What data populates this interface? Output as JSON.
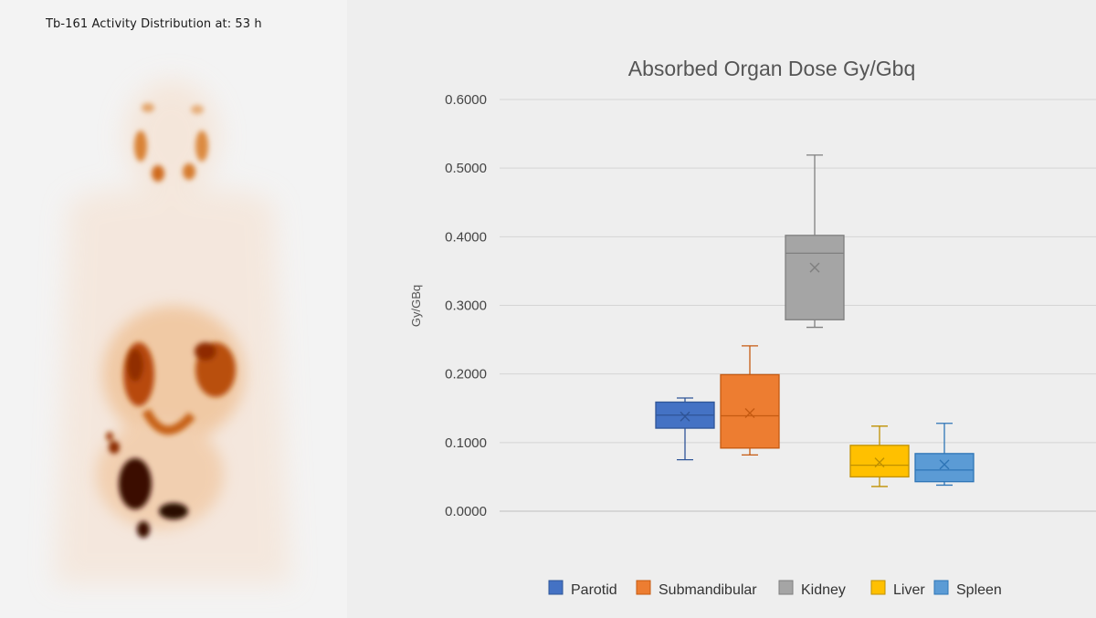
{
  "left_panel": {
    "title": "Tb-161 Activity Distribution at: 53 h"
  },
  "chart_data": {
    "type": "box",
    "title": "Absorbed Organ Dose Gy/Gbq",
    "xlabel": "",
    "ylabel": "Gy/GBq",
    "ylim": [
      0,
      0.6
    ],
    "yticks": [
      0,
      0.1,
      0.2,
      0.3,
      0.4,
      0.5,
      0.6
    ],
    "ytick_labels": [
      "0.0000",
      "0.1000",
      "0.2000",
      "0.3000",
      "0.4000",
      "0.5000",
      "0.6000"
    ],
    "grid": true,
    "legend_position": "bottom",
    "series": [
      {
        "name": "Parotid",
        "color": "#4472C4",
        "stroke": "#2F5597",
        "min": 0.075,
        "q1": 0.121,
        "median": 0.14,
        "q3": 0.159,
        "max": 0.165,
        "mean": 0.138
      },
      {
        "name": "Submandibular",
        "color": "#ED7D31",
        "stroke": "#C55A11",
        "min": 0.082,
        "q1": 0.092,
        "median": 0.139,
        "q3": 0.199,
        "max": 0.241,
        "mean": 0.143
      },
      {
        "name": "Kidney",
        "color": "#A5A5A5",
        "stroke": "#7F7F7F",
        "min": 0.268,
        "q1": 0.279,
        "median": 0.376,
        "q3": 0.402,
        "max": 0.519,
        "mean": 0.355
      },
      {
        "name": "Liver",
        "color": "#FFC000",
        "stroke": "#BF9000",
        "min": 0.036,
        "q1": 0.05,
        "median": 0.067,
        "q3": 0.096,
        "max": 0.124,
        "mean": 0.071
      },
      {
        "name": "Spleen",
        "color": "#5B9BD5",
        "stroke": "#2E75B6",
        "min": 0.038,
        "q1": 0.043,
        "median": 0.06,
        "q3": 0.084,
        "max": 0.128,
        "mean": 0.068
      }
    ]
  }
}
